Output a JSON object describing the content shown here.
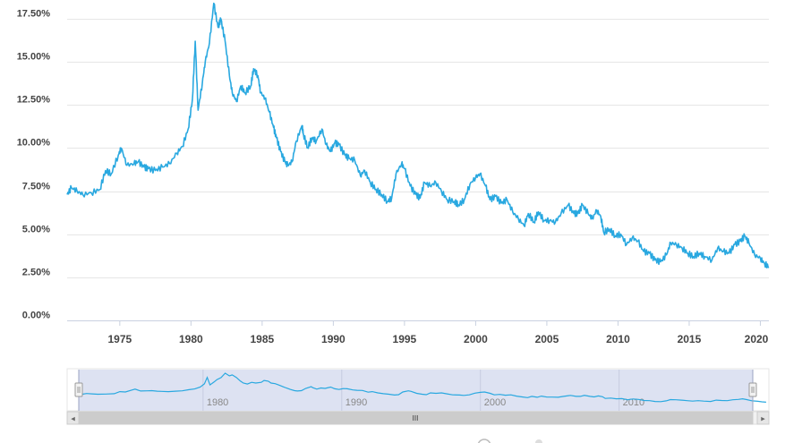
{
  "chart_data": {
    "type": "line",
    "title": "",
    "xlabel": "",
    "ylabel": "",
    "xlim": [
      1971.3,
      2020.6
    ],
    "ylim": [
      0,
      18.5
    ],
    "y_ticks": [
      "0.00%",
      "2.50%",
      "5.00%",
      "7.50%",
      "10.00%",
      "12.50%",
      "15.00%",
      "17.50%"
    ],
    "y_tick_values": [
      0,
      2.5,
      5,
      7.5,
      10,
      12.5,
      15,
      17.5
    ],
    "x_ticks": [
      "1975",
      "1980",
      "1985",
      "1990",
      "1995",
      "2000",
      "2005",
      "2010",
      "2015",
      "2020"
    ],
    "x_tick_values": [
      1975,
      1980,
      1985,
      1990,
      1995,
      2000,
      2005,
      2010,
      2015,
      2020
    ],
    "grid": true,
    "series": [
      {
        "color": "#29a8e0",
        "points": [
          [
            1971.3,
            7.3
          ],
          [
            1971.6,
            7.7
          ],
          [
            1972.0,
            7.5
          ],
          [
            1972.4,
            7.3
          ],
          [
            1973.0,
            7.4
          ],
          [
            1973.6,
            7.6
          ],
          [
            1974.0,
            8.7
          ],
          [
            1974.4,
            8.5
          ],
          [
            1974.9,
            9.6
          ],
          [
            1975.1,
            10.0
          ],
          [
            1975.5,
            9.0
          ],
          [
            1976.0,
            9.1
          ],
          [
            1976.3,
            9.2
          ],
          [
            1976.7,
            8.9
          ],
          [
            1977.0,
            8.8
          ],
          [
            1977.5,
            8.7
          ],
          [
            1978.0,
            8.9
          ],
          [
            1978.5,
            9.1
          ],
          [
            1979.0,
            9.7
          ],
          [
            1979.4,
            10.1
          ],
          [
            1979.8,
            11.1
          ],
          [
            1980.1,
            12.8
          ],
          [
            1980.3,
            16.2
          ],
          [
            1980.5,
            12.2
          ],
          [
            1980.8,
            13.8
          ],
          [
            1981.0,
            15.0
          ],
          [
            1981.3,
            16.1
          ],
          [
            1981.6,
            18.4
          ],
          [
            1981.9,
            17.0
          ],
          [
            1982.1,
            17.5
          ],
          [
            1982.4,
            16.2
          ],
          [
            1982.7,
            14.2
          ],
          [
            1982.9,
            13.2
          ],
          [
            1983.2,
            12.7
          ],
          [
            1983.5,
            13.6
          ],
          [
            1983.8,
            13.2
          ],
          [
            1984.2,
            13.6
          ],
          [
            1984.4,
            14.6
          ],
          [
            1984.7,
            14.2
          ],
          [
            1984.9,
            13.2
          ],
          [
            1985.2,
            12.9
          ],
          [
            1985.5,
            12.1
          ],
          [
            1985.8,
            11.2
          ],
          [
            1986.0,
            10.6
          ],
          [
            1986.3,
            9.8
          ],
          [
            1986.6,
            9.2
          ],
          [
            1986.8,
            9.0
          ],
          [
            1987.1,
            9.2
          ],
          [
            1987.4,
            10.4
          ],
          [
            1987.8,
            11.3
          ],
          [
            1987.9,
            10.8
          ],
          [
            1988.2,
            10.0
          ],
          [
            1988.5,
            10.6
          ],
          [
            1988.8,
            10.4
          ],
          [
            1989.2,
            11.1
          ],
          [
            1989.5,
            10.2
          ],
          [
            1989.8,
            9.8
          ],
          [
            1990.1,
            10.3
          ],
          [
            1990.4,
            10.2
          ],
          [
            1990.8,
            9.6
          ],
          [
            1991.1,
            9.4
          ],
          [
            1991.5,
            9.3
          ],
          [
            1991.9,
            8.4
          ],
          [
            1992.2,
            8.7
          ],
          [
            1992.6,
            8.0
          ],
          [
            1993.0,
            7.6
          ],
          [
            1993.4,
            7.3
          ],
          [
            1993.8,
            6.9
          ],
          [
            1994.1,
            7.1
          ],
          [
            1994.4,
            8.5
          ],
          [
            1994.8,
            9.1
          ],
          [
            1995.0,
            8.8
          ],
          [
            1995.4,
            7.8
          ],
          [
            1995.8,
            7.3
          ],
          [
            1996.1,
            7.1
          ],
          [
            1996.4,
            8.0
          ],
          [
            1996.8,
            7.8
          ],
          [
            1997.2,
            8.0
          ],
          [
            1997.6,
            7.5
          ],
          [
            1998.0,
            7.0
          ],
          [
            1998.5,
            6.9
          ],
          [
            1998.8,
            6.7
          ],
          [
            1999.2,
            7.0
          ],
          [
            1999.6,
            7.9
          ],
          [
            2000.0,
            8.3
          ],
          [
            2000.3,
            8.5
          ],
          [
            2000.7,
            7.8
          ],
          [
            2001.0,
            7.0
          ],
          [
            2001.4,
            7.2
          ],
          [
            2001.8,
            6.8
          ],
          [
            2002.2,
            7.0
          ],
          [
            2002.6,
            6.3
          ],
          [
            2003.0,
            5.9
          ],
          [
            2003.4,
            5.5
          ],
          [
            2003.7,
            6.2
          ],
          [
            2004.1,
            5.7
          ],
          [
            2004.4,
            6.3
          ],
          [
            2004.8,
            5.8
          ],
          [
            2005.2,
            5.8
          ],
          [
            2005.6,
            5.7
          ],
          [
            2006.0,
            6.2
          ],
          [
            2006.5,
            6.7
          ],
          [
            2006.9,
            6.2
          ],
          [
            2007.2,
            6.2
          ],
          [
            2007.5,
            6.7
          ],
          [
            2007.9,
            6.2
          ],
          [
            2008.2,
            5.9
          ],
          [
            2008.5,
            6.4
          ],
          [
            2008.8,
            6.0
          ],
          [
            2009.0,
            5.1
          ],
          [
            2009.4,
            5.3
          ],
          [
            2009.8,
            4.9
          ],
          [
            2010.2,
            5.0
          ],
          [
            2010.6,
            4.4
          ],
          [
            2011.0,
            4.8
          ],
          [
            2011.4,
            4.6
          ],
          [
            2011.8,
            4.0
          ],
          [
            2012.2,
            3.9
          ],
          [
            2012.6,
            3.5
          ],
          [
            2013.0,
            3.4
          ],
          [
            2013.4,
            3.8
          ],
          [
            2013.7,
            4.5
          ],
          [
            2014.1,
            4.4
          ],
          [
            2014.5,
            4.2
          ],
          [
            2014.9,
            3.9
          ],
          [
            2015.3,
            3.7
          ],
          [
            2015.7,
            3.9
          ],
          [
            2016.1,
            3.7
          ],
          [
            2016.6,
            3.5
          ],
          [
            2017.0,
            4.2
          ],
          [
            2017.4,
            4.0
          ],
          [
            2017.8,
            3.9
          ],
          [
            2018.2,
            4.4
          ],
          [
            2018.6,
            4.6
          ],
          [
            2018.9,
            4.9
          ],
          [
            2019.2,
            4.5
          ],
          [
            2019.6,
            3.8
          ],
          [
            2020.0,
            3.6
          ],
          [
            2020.3,
            3.3
          ],
          [
            2020.6,
            3.1
          ]
        ]
      }
    ]
  },
  "navigator": {
    "x_ticks": [
      "1980",
      "1990",
      "2000",
      "2010"
    ],
    "x_tick_values": [
      1980,
      1990,
      2000,
      2010
    ],
    "xlim": [
      1970.2,
      2020.8
    ],
    "scroll_icon": "scroll-grip-icon",
    "left_arrow": "◂",
    "right_arrow": "▸",
    "scrollbar_grip": "III"
  }
}
